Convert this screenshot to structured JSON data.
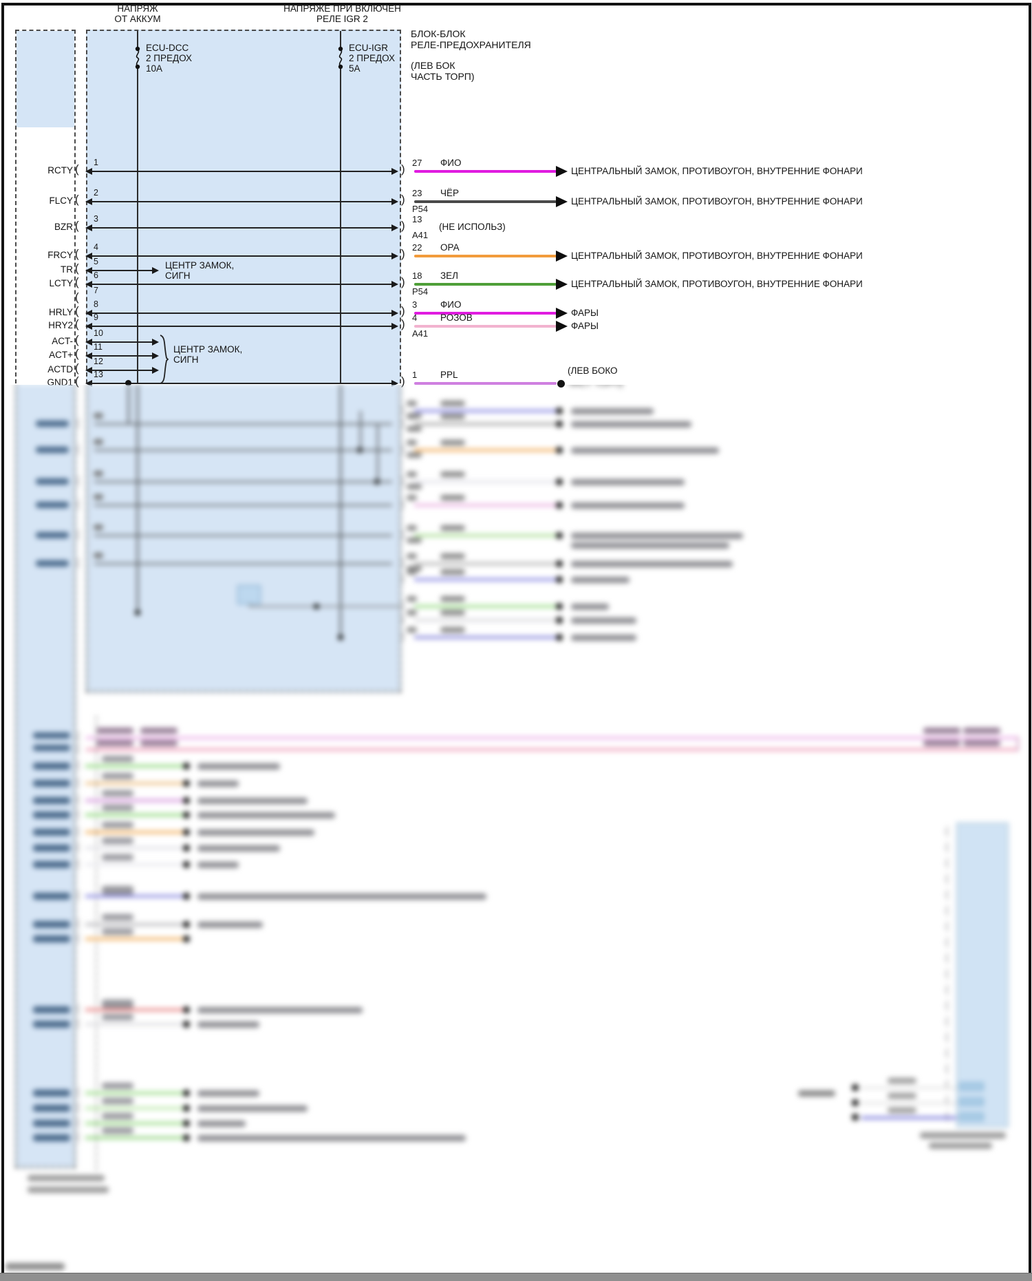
{
  "headers": {
    "left1": "НАПРЯЖ",
    "left2": "ОТ АККУМ",
    "right1": "НАПРЯЖЕ ПРИ ВКЛЮЧЕН",
    "right2": "РЕЛЕ IGR 2"
  },
  "fuses": [
    {
      "name": "ECU-DCC",
      "slots": "2 ПРЕДОХ",
      "rating": "10А"
    },
    {
      "name": "ECU-IGR",
      "slots": "2 ПРЕДОХ",
      "rating": "5А"
    }
  ],
  "relay_block": {
    "line1": "БЛОК-БЛОК",
    "line2": "РЕЛЕ-ПРЕДОХРАНИТЕЛЯ",
    "note1": "(ЛЕВ БОК",
    "note2": "ЧАСТЬ ТОРП)"
  },
  "left_connector": {
    "pins": [
      {
        "num": "1",
        "label": "RCTY"
      },
      {
        "num": "2",
        "label": "FLCY"
      },
      {
        "num": "3",
        "label": "BZR"
      },
      {
        "num": "4",
        "label": "FRCY"
      },
      {
        "num": "5",
        "label": "TR"
      },
      {
        "num": "6",
        "label": "LCTY"
      },
      {
        "num": "7",
        "label": ""
      },
      {
        "num": "8",
        "label": "HRLY"
      },
      {
        "num": "9",
        "label": "HRY2"
      },
      {
        "num": "10",
        "label": "ACT-"
      },
      {
        "num": "11",
        "label": "ACT+"
      },
      {
        "num": "12",
        "label": "ACTD"
      },
      {
        "num": "13",
        "label": "GND1"
      }
    ]
  },
  "notes": {
    "center_lock_1": "ЦЕНТР ЗАМОК,",
    "center_lock_2": "СИГН"
  },
  "right_rows": [
    {
      "pin": "27",
      "color_name": "ФИО",
      "sub": "",
      "wire": "#e01ce0",
      "dest": "ЦЕНТРАЛЬНЫЙ ЗАМОК, ПРОТИВОУГОН, ВНУТРЕННИЕ ФОНАРИ"
    },
    {
      "pin": "23",
      "color_name": "ЧЁР",
      "sub": "P54",
      "wire": "#4a4a4a",
      "dest": "ЦЕНТРАЛЬНЫЙ ЗАМОК, ПРОТИВОУГОН, ВНУТРЕННИЕ ФОНАРИ"
    },
    {
      "pin": "13",
      "color_name": "",
      "sub": "A41",
      "wire": "",
      "dest": "",
      "note": "(НЕ ИСПОЛЬЗ)"
    },
    {
      "pin": "22",
      "color_name": "ОРА",
      "sub": "",
      "wire": "#f29b3c",
      "dest": "ЦЕНТРАЛЬНЫЙ ЗАМОК, ПРОТИВОУГОН, ВНУТРЕННИЕ ФОНАРИ"
    },
    {
      "pin": "18",
      "color_name": "ЗЕЛ",
      "sub": "P54",
      "wire": "#4f9f38",
      "dest": "ЦЕНТРАЛЬНЫЙ ЗАМОК, ПРОТИВОУГОН, ВНУТРЕННИЕ ФОНАРИ"
    },
    {
      "pin": "3",
      "color_name": "ФИО",
      "sub": "",
      "wire": "#e01ce0",
      "dest": "ФАРЫ"
    },
    {
      "pin": "4",
      "color_name": "РОЗОВ",
      "sub": "A41",
      "wire": "#f2b3cf",
      "dest": "ФАРЫ"
    },
    {
      "pin": "1",
      "color_name": "PPL",
      "sub": "",
      "wire": "#cf80e0",
      "dest": "",
      "end": "dot",
      "note2": [
        "(ЛЕВ БОКО",
        "ЧАСТ ТОРП)"
      ]
    }
  ],
  "palette": {
    "box_fill": "#d5e5f6",
    "wire_black": "#4a4a4a",
    "wire_magenta": "#e01ce0",
    "wire_orange": "#f29b3c",
    "wire_green": "#4f9f38",
    "wire_pink": "#f2b3cf",
    "wire_purple": "#cf80e0"
  }
}
